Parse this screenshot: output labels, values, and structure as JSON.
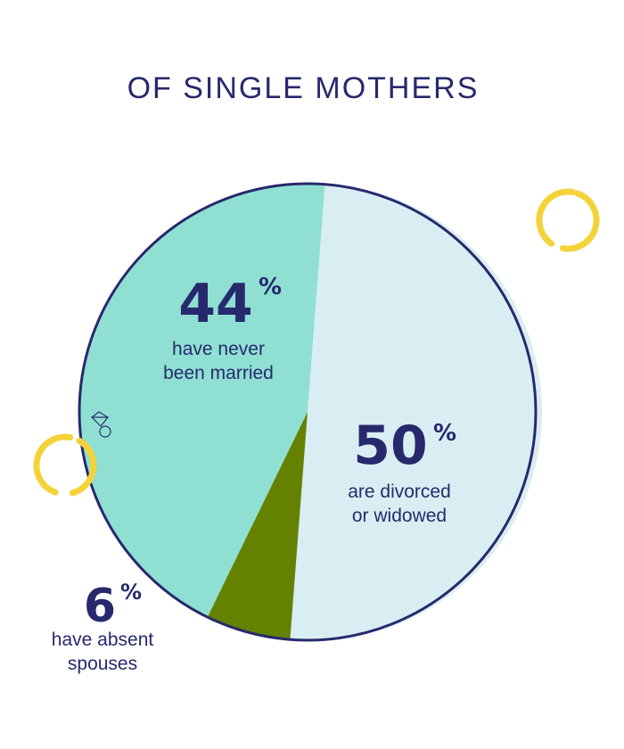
{
  "chart_data": {
    "type": "pie",
    "title": "OF SINGLE MOTHERS",
    "slices": [
      {
        "value": 44,
        "number": "44",
        "symbol": "%",
        "lines": [
          "have never",
          "been married"
        ],
        "color": "#8fe0d2"
      },
      {
        "value": 50,
        "number": "50",
        "symbol": "%",
        "lines": [
          "are divorced",
          "or widowed"
        ],
        "color": "#d9eef2"
      },
      {
        "value": 6,
        "number": "6",
        "symbol": "%",
        "lines": [
          "have absent",
          "spouses"
        ],
        "color": "#648200"
      }
    ]
  },
  "colors": {
    "outline": "#27296d",
    "shadow": "#d9eef2",
    "accent": "#f5d23a"
  }
}
